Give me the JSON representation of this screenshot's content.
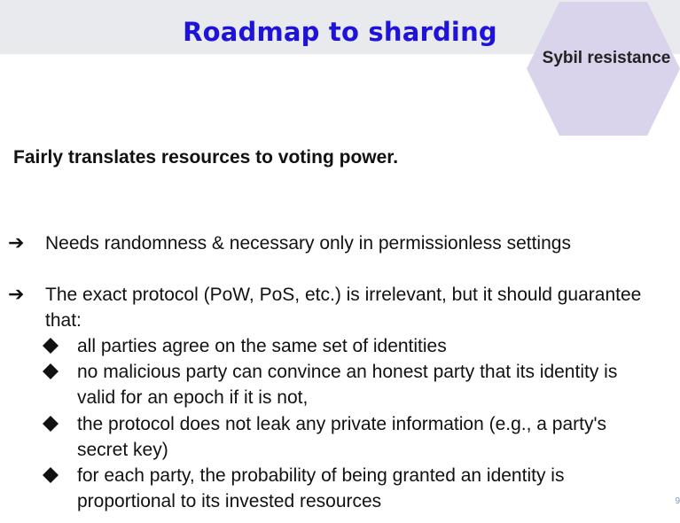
{
  "slide": {
    "title": "Roadmap to sharding",
    "badge_label": "Sybil resistance",
    "subtitle": "Fairly translates resources to voting power.",
    "points": [
      "Needs randomness & necessary only in permissionless settings",
      "The exact protocol (PoW, PoS, etc.) is irrelevant, but it should guarantee that:"
    ],
    "sub_points": [
      "all parties agree on the same set of identities",
      "no malicious party can convince an honest party that its identity is valid for an epoch if it is not,",
      "the protocol does not leak any private information (e.g., a party's secret key)",
      "for each party, the probability of being granted an identity is proportional to its invested resources"
    ],
    "arrow_glyph": "➔",
    "corner_mark": "9"
  },
  "colors": {
    "title": "#1f13d8",
    "title_band": "#e8eaee",
    "hexagon": "#d9d4ec"
  }
}
